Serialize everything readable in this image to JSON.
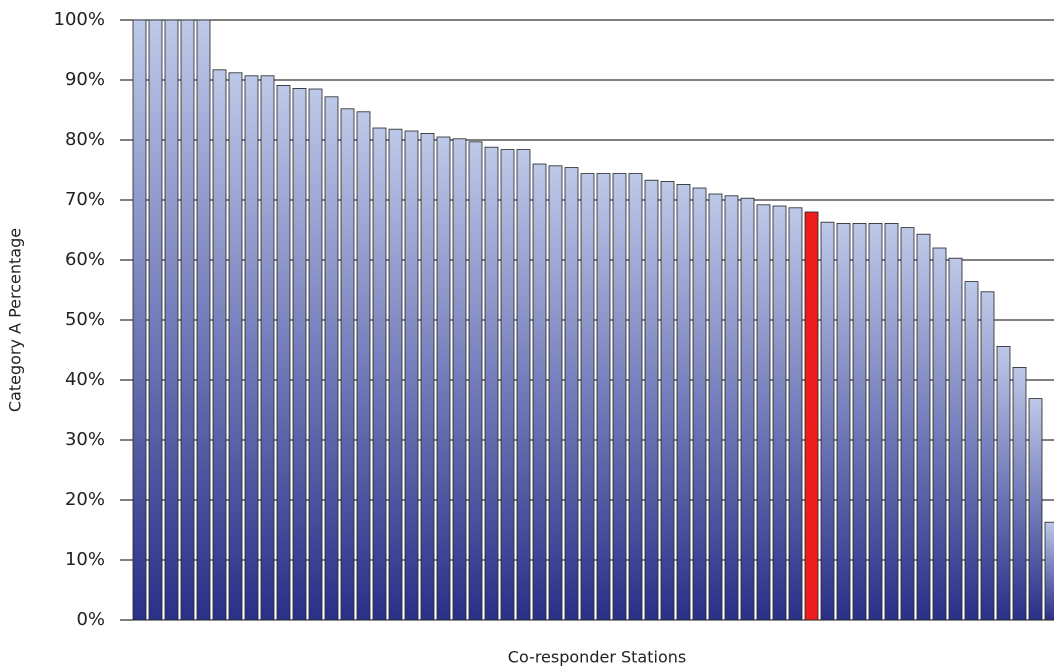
{
  "chart_data": {
    "type": "bar",
    "x_label": "Co-responder Stations",
    "y_label": "Category A Percentage",
    "categories": [
      null,
      null,
      null,
      null,
      null,
      null,
      null,
      null,
      null,
      null,
      null,
      null,
      null,
      null,
      null,
      null,
      null,
      null,
      null,
      null,
      null,
      null,
      null,
      null,
      null,
      null,
      null,
      null,
      null,
      null,
      null,
      null,
      null,
      null,
      null,
      null,
      null,
      null,
      null,
      null,
      null,
      null,
      null,
      null,
      null,
      null,
      null,
      null,
      null,
      null,
      null,
      null,
      null,
      null,
      null,
      null,
      null,
      null
    ],
    "values": [
      100,
      100,
      100,
      100,
      100,
      91.7,
      91.2,
      90.7,
      90.7,
      89.1,
      88.6,
      88.5,
      87.2,
      85.2,
      84.7,
      82.0,
      81.8,
      81.5,
      81.1,
      80.5,
      80.2,
      79.7,
      78.8,
      78.4,
      78.4,
      76.0,
      75.7,
      75.4,
      74.4,
      74.4,
      74.4,
      74.4,
      73.3,
      73.1,
      72.6,
      72.0,
      71.0,
      70.7,
      70.3,
      69.2,
      69.0,
      68.7,
      68.0,
      66.3,
      66.1,
      66.1,
      66.1,
      66.1,
      65.4,
      64.3,
      62.0,
      60.3,
      56.4,
      54.7,
      45.6,
      42.1,
      36.9,
      16.3
    ],
    "color": "#2a3088",
    "gradient_top": "#bdc9e9",
    "highlight": {
      "index": 42,
      "color": "#ee1c1c"
    },
    "ylim": [
      0,
      100
    ],
    "yticks": [
      {
        "value": 0,
        "label": "0%"
      },
      {
        "value": 10,
        "label": "10%"
      },
      {
        "value": 20,
        "label": "20%"
      },
      {
        "value": 30,
        "label": "30%"
      },
      {
        "value": 40,
        "label": "40%"
      },
      {
        "value": 50,
        "label": "50%"
      },
      {
        "value": 60,
        "label": "60%"
      },
      {
        "value": 70,
        "label": "70%"
      },
      {
        "value": 80,
        "label": "80%"
      },
      {
        "value": 90,
        "label": "90%"
      },
      {
        "value": 100,
        "label": "100%"
      }
    ],
    "grid": true
  }
}
